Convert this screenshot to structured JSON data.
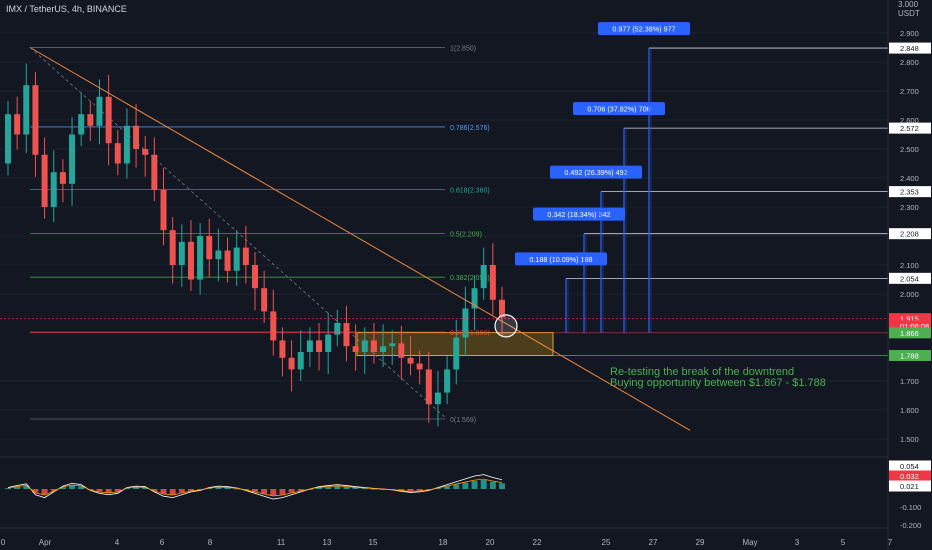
{
  "header": {
    "symbol": "IMX / TetherUS, 4h, BINANCE"
  },
  "price_axis": {
    "unit_label": "USDT",
    "top_label": "3.000"
  },
  "annotation": {
    "line1": "Re-testing the break of the downtrend",
    "line2": "Buying opportunity between $1.867 - $1.788"
  },
  "colors": {
    "background": "#131722",
    "up": "#26a69a",
    "down": "#ef5350",
    "trendline": "#f0883e",
    "zone": "#b8860b",
    "target_box": "#2962ff",
    "current_price": "#f23645",
    "text_green": "#4caf50"
  },
  "chart_data": [
    {
      "type": "candlestick",
      "symbol": "IMX / TetherUS",
      "interval": "4h",
      "exchange": "BINANCE",
      "x_tick_labels": [
        "0",
        "Apr",
        "4",
        "6",
        "8",
        "11",
        "13",
        "15",
        "18",
        "20",
        "22",
        "25",
        "27",
        "29",
        "May",
        "3",
        "5",
        "7"
      ],
      "y_tick_labels": [
        "1.500",
        "1.600",
        "1.700",
        "2.000",
        "2.100",
        "2.200",
        "2.300",
        "2.400",
        "2.500",
        "2.600",
        "2.700",
        "2.800",
        "2.900"
      ],
      "ylim": [
        1.45,
        3.0
      ],
      "closes": [
        2.62,
        2.55,
        2.72,
        2.48,
        2.3,
        2.42,
        2.38,
        2.55,
        2.62,
        2.58,
        2.68,
        2.52,
        2.45,
        2.58,
        2.5,
        2.48,
        2.36,
        2.22,
        2.1,
        2.18,
        2.05,
        2.2,
        2.12,
        2.15,
        2.08,
        2.16,
        2.1,
        2.02,
        1.94,
        1.84,
        1.78,
        1.74,
        1.8,
        1.84,
        1.8,
        1.86,
        1.9,
        1.82,
        1.8,
        1.84,
        1.8,
        1.82,
        1.83,
        1.78,
        1.76,
        1.74,
        1.62,
        1.66,
        1.74,
        1.85,
        1.95,
        2.02,
        2.1,
        1.98,
        1.92
      ],
      "fib_levels": [
        {
          "label": "1(2.850)",
          "value": 2.85
        },
        {
          "label": "0.786(2.576)",
          "value": 2.576
        },
        {
          "label": "0.618(2.360)",
          "value": 2.36
        },
        {
          "label": "0.5(2.209)",
          "value": 2.209
        },
        {
          "label": "0.382(2.058)",
          "value": 2.058
        },
        {
          "label": "0.236(1.869)",
          "value": 1.869
        },
        {
          "label": "0(1.569)",
          "value": 1.569
        }
      ],
      "targets": [
        {
          "label": "0.188 (10.09%) 188",
          "value": 2.054
        },
        {
          "label": "0.342 (18.34%) 342",
          "value": 2.208
        },
        {
          "label": "0.492 (26.39%) 492",
          "value": 2.353
        },
        {
          "label": "0.706 (37.82%) 706",
          "value": 2.572
        },
        {
          "label": "0.977 (52.38%) 977",
          "value": 2.848
        }
      ],
      "price_tags": [
        {
          "label": "2.848",
          "value": 2.848,
          "style": "white"
        },
        {
          "label": "2.572",
          "value": 2.572,
          "style": "white"
        },
        {
          "label": "2.353",
          "value": 2.353,
          "style": "white"
        },
        {
          "label": "2.208",
          "value": 2.208,
          "style": "white"
        },
        {
          "label": "2.054",
          "value": 2.054,
          "style": "white"
        },
        {
          "label": "1.915",
          "value": 1.915,
          "style": "red"
        },
        {
          "label": "01:06:08",
          "value": 1.89,
          "style": "red-sub"
        },
        {
          "label": "1.866",
          "value": 1.866,
          "style": "green"
        },
        {
          "label": "1.788",
          "value": 1.788,
          "style": "green"
        }
      ],
      "buy_zone": [
        1.788,
        1.867
      ]
    },
    {
      "type": "bar",
      "indicator": "MACD histogram",
      "y_tick_labels": [
        "0.054",
        "0.032",
        "0.021",
        "-0.100",
        "-0.200"
      ],
      "ylim": [
        -0.24,
        0.1
      ],
      "histogram": [
        0.005,
        0.012,
        0.018,
        -0.02,
        -0.03,
        -0.01,
        0.01,
        0.02,
        0.015,
        -0.005,
        -0.015,
        -0.02,
        -0.015,
        0.005,
        0.01,
        0.008,
        -0.01,
        -0.025,
        -0.03,
        -0.02,
        -0.01,
        -0.005,
        0.005,
        0.01,
        0.008,
        0.004,
        -0.005,
        -0.015,
        -0.025,
        -0.035,
        -0.03,
        -0.02,
        -0.01,
        0.0,
        0.008,
        0.012,
        0.015,
        0.012,
        0.008,
        0.005,
        0.002,
        0.0,
        -0.003,
        -0.008,
        -0.012,
        -0.01,
        -0.005,
        0.005,
        0.015,
        0.025,
        0.035,
        0.045,
        0.05,
        0.04,
        0.032
      ]
    }
  ]
}
